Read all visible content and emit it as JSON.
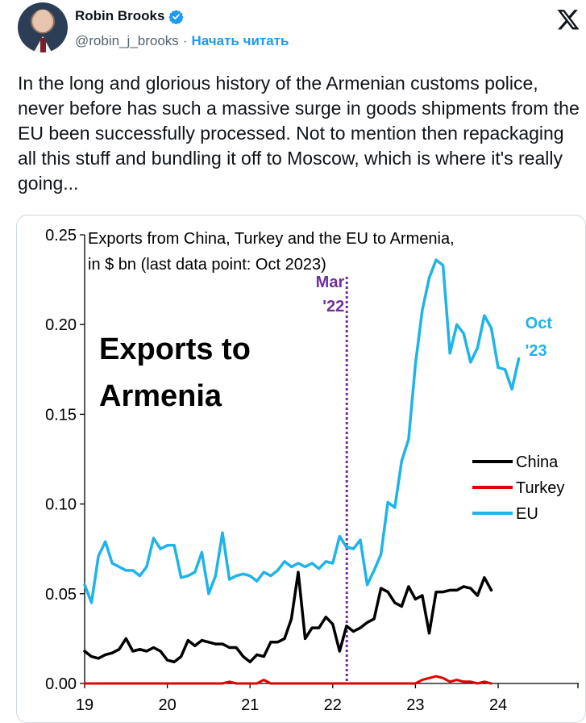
{
  "tweet": {
    "author_name": "Robin Brooks",
    "handle": "@robin_j_brooks",
    "separator": "·",
    "follow_label": "Начать читать",
    "text": "In the long and glorious history of the Armenian customs police, never before has such a massive surge in goods shipments from the EU been successfully processed. Not to mention then repackaging all this stuff and bundling it off to Moscow, which is where it's really going...",
    "icons": [
      "avatar-photo",
      "verified-badge-icon",
      "x-logo-icon"
    ],
    "colors": {
      "link": "#1d9bf0",
      "secondary_text": "#536471",
      "verified": "#1d9bf0"
    }
  },
  "chart_data": {
    "type": "line",
    "title": "Exports from China, Turkey and the EU to Armenia,",
    "subtitle": "in $ bn (last data point: Oct 2023)",
    "overlay_text": [
      "Exports to",
      "Armenia"
    ],
    "xlabel": "",
    "ylabel": "",
    "x_ticks": [
      "19",
      "20",
      "21",
      "22",
      "23",
      "24"
    ],
    "y_ticks": [
      "0.00",
      "0.05",
      "0.10",
      "0.15",
      "0.20",
      "0.25"
    ],
    "xlim": [
      2019,
      2024.9
    ],
    "ylim": [
      0,
      0.25
    ],
    "vline": {
      "x": 2022.17,
      "label": [
        "Mar",
        "'22"
      ],
      "color": "#7030a0"
    },
    "end_label": {
      "text": [
        "Oct",
        "'23"
      ],
      "color": "#1fb4e8"
    },
    "legend_position": "right",
    "series": [
      {
        "name": "China",
        "color": "#000000",
        "values": [
          0.018,
          0.015,
          0.014,
          0.016,
          0.017,
          0.019,
          0.025,
          0.018,
          0.019,
          0.018,
          0.02,
          0.018,
          0.013,
          0.012,
          0.015,
          0.024,
          0.021,
          0.024,
          0.023,
          0.022,
          0.022,
          0.02,
          0.02,
          0.015,
          0.012,
          0.016,
          0.015,
          0.023,
          0.023,
          0.025,
          0.036,
          0.062,
          0.025,
          0.031,
          0.031,
          0.037,
          0.033,
          0.018,
          0.032,
          0.029,
          0.031,
          0.034,
          0.036,
          0.053,
          0.051,
          0.045,
          0.043,
          0.054,
          0.047,
          0.049,
          0.028,
          0.051,
          0.051,
          0.052,
          0.052,
          0.054,
          0.053,
          0.049,
          0.059,
          0.052
        ]
      },
      {
        "name": "Turkey",
        "color": "#e00000",
        "values": [
          0.0,
          0.0,
          0.0,
          0.0,
          0.0,
          0.0,
          0.0,
          0.0,
          0.0,
          0.0,
          0.0,
          0.0,
          0.0,
          0.0,
          0.0,
          0.0,
          0.0,
          0.0,
          0.0,
          0.0,
          0.0,
          0.001,
          0.0,
          0.0,
          0.0,
          0.0,
          0.002,
          0.0,
          0.0,
          0.0,
          0.0,
          0.0,
          0.0,
          0.0,
          0.0,
          0.0,
          0.0,
          0.0,
          0.0,
          0.0,
          0.0,
          0.0,
          0.0,
          0.0,
          0.0,
          0.0,
          0.0,
          0.0,
          0.0,
          0.002,
          0.003,
          0.004,
          0.003,
          0.001,
          0.002,
          0.001,
          0.001,
          0.0,
          0.001,
          0.0
        ]
      },
      {
        "name": "EU",
        "color": "#1fb4e8",
        "values": [
          0.055,
          0.045,
          0.071,
          0.079,
          0.067,
          0.065,
          0.063,
          0.063,
          0.06,
          0.065,
          0.081,
          0.075,
          0.077,
          0.077,
          0.059,
          0.06,
          0.062,
          0.073,
          0.05,
          0.06,
          0.084,
          0.058,
          0.06,
          0.061,
          0.06,
          0.057,
          0.062,
          0.06,
          0.063,
          0.068,
          0.065,
          0.067,
          0.065,
          0.067,
          0.064,
          0.068,
          0.067,
          0.082,
          0.076,
          0.075,
          0.08,
          0.055,
          0.063,
          0.072,
          0.101,
          0.098,
          0.124,
          0.136,
          0.178,
          0.208,
          0.226,
          0.236,
          0.233,
          0.184,
          0.2,
          0.195,
          0.179,
          0.187,
          0.205,
          0.198,
          0.176,
          0.175,
          0.164,
          0.181
        ]
      }
    ]
  }
}
